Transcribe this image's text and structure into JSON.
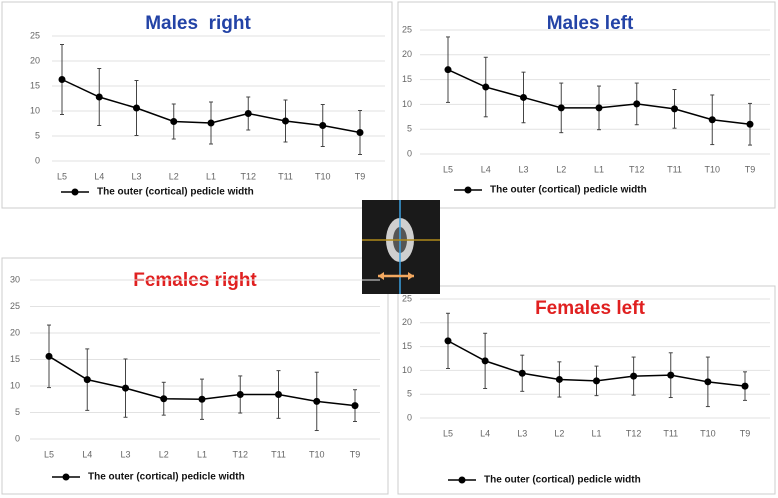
{
  "chart_data": [
    {
      "type": "line",
      "title": "Males  right",
      "title_color": "#2343a6",
      "categories": [
        "L5",
        "L4",
        "L3",
        "L2",
        "L1",
        "T12",
        "T11",
        "T10",
        "T9"
      ],
      "series": [
        {
          "name": "The outer (cortical) pedicle width",
          "color": "#000000",
          "values": [
            16.3,
            12.8,
            10.6,
            7.9,
            7.6,
            9.5,
            8,
            7.1,
            5.7
          ],
          "errors": [
            7,
            5.7,
            5.5,
            3.5,
            4.2,
            3.3,
            4.2,
            4.2,
            4.4
          ]
        }
      ],
      "ylim": [
        0,
        25
      ],
      "yticks": [
        0,
        5,
        10,
        15,
        20,
        25
      ],
      "grid": true
    },
    {
      "type": "line",
      "title": "Males left",
      "title_color": "#2343a6",
      "categories": [
        "L5",
        "L4",
        "L3",
        "L2",
        "L1",
        "T12",
        "T11",
        "T10",
        "T9"
      ],
      "series": [
        {
          "name": "The outer (cortical) pedicle width",
          "color": "#000000",
          "values": [
            17,
            13.5,
            11.4,
            9.3,
            9.3,
            10.1,
            9.1,
            6.9,
            6
          ],
          "errors": [
            6.6,
            6,
            5.1,
            5,
            4.4,
            4.2,
            3.9,
            5,
            4.2
          ]
        }
      ],
      "ylim": [
        0,
        25
      ],
      "yticks": [
        0,
        5,
        10,
        15,
        20,
        25
      ],
      "grid": true
    },
    {
      "type": "line",
      "title": "Females right",
      "title_color": "#e02020",
      "categories": [
        "L5",
        "L4",
        "L3",
        "L2",
        "L1",
        "T12",
        "T11",
        "T10",
        "T9"
      ],
      "series": [
        {
          "name": "The outer (cortical) pedicle width",
          "color": "#000000",
          "values": [
            15.6,
            11.2,
            9.6,
            7.6,
            7.5,
            8.4,
            8.4,
            7.1,
            6.3
          ],
          "errors": [
            5.9,
            5.8,
            5.5,
            3.1,
            3.8,
            3.5,
            4.5,
            5.5,
            3
          ]
        }
      ],
      "ylim": [
        0,
        30
      ],
      "yticks": [
        0,
        5,
        10,
        15,
        20,
        25,
        30
      ],
      "grid": true
    },
    {
      "type": "line",
      "title": "Females left",
      "title_color": "#e02020",
      "categories": [
        "L5",
        "L4",
        "L3",
        "L2",
        "L1",
        "T12",
        "T11",
        "T10",
        "T9"
      ],
      "series": [
        {
          "name": "The outer (cortical) pedicle width",
          "color": "#000000",
          "values": [
            16.2,
            12,
            9.4,
            8.1,
            7.8,
            8.8,
            9,
            7.6,
            6.7
          ],
          "errors": [
            5.8,
            5.8,
            3.8,
            3.7,
            3.1,
            4,
            4.7,
            5.2,
            3
          ]
        }
      ],
      "ylim": [
        0,
        25
      ],
      "yticks": [
        0,
        5,
        10,
        15,
        20,
        25
      ],
      "grid": true
    }
  ]
}
